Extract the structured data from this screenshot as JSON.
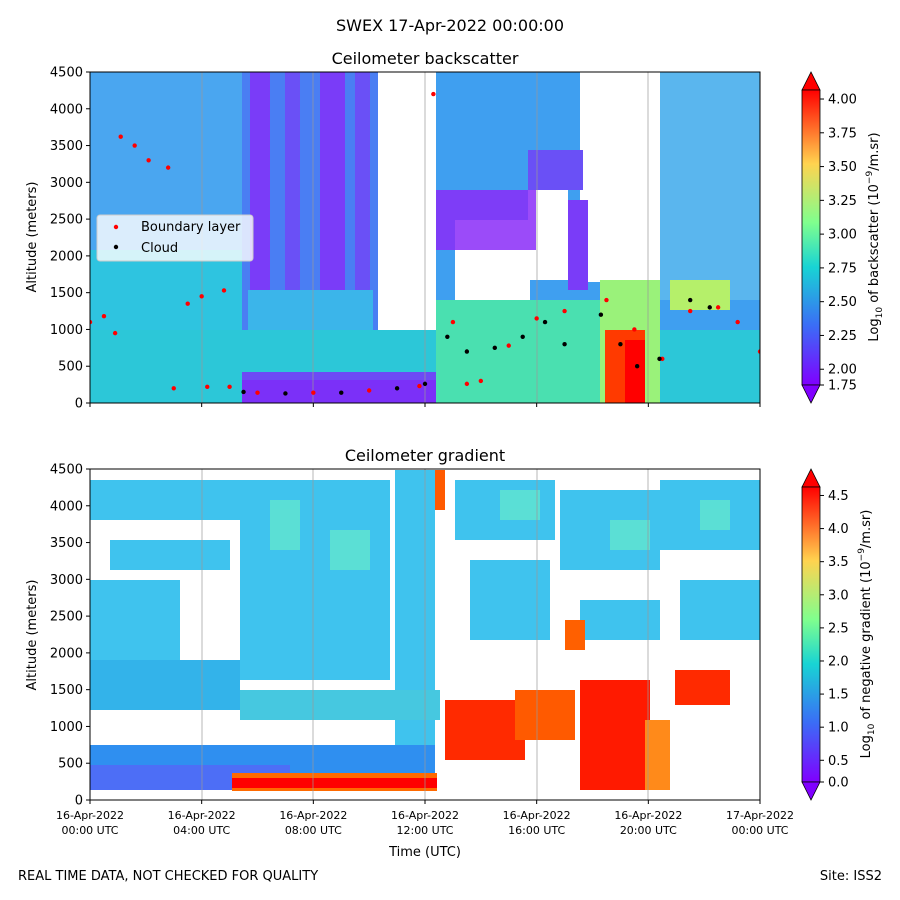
{
  "figure": {
    "suptitle": "SWEX 17-Apr-2022 00:00:00",
    "footer_left": "REAL TIME DATA, NOT CHECKED FOR QUALITY",
    "footer_right": "Site: ISS2"
  },
  "chart_data": [
    {
      "type": "heatmap",
      "title": "Ceilometer backscatter",
      "ylabel": "Altitude (meters)",
      "xlabel": "",
      "ylim": [
        0,
        4500
      ],
      "yticks": [
        0,
        500,
        1000,
        1500,
        2000,
        2500,
        3000,
        3500,
        4000,
        4500
      ],
      "xlim_hours": [
        0,
        24
      ],
      "colorbar": {
        "label": "Log10 of backscatter (10⁻⁹/m.sr)",
        "ticks": [
          1.75,
          2.0,
          2.25,
          2.5,
          2.75,
          3.0,
          3.25,
          3.5,
          3.75,
          4.0
        ],
        "range": [
          1.75,
          4.2
        ],
        "colormap": "rainbow"
      },
      "legend": {
        "placement": "center-left",
        "entries": [
          {
            "label": "Boundary layer",
            "color": "#ff0000"
          },
          {
            "label": "Cloud",
            "color": "#000000"
          }
        ]
      },
      "series": [
        {
          "name": "Boundary layer",
          "points": [
            [
              0.0,
              1100
            ],
            [
              0.5,
              1180
            ],
            [
              0.9,
              950
            ],
            [
              1.1,
              3620
            ],
            [
              1.6,
              3500
            ],
            [
              2.1,
              3300
            ],
            [
              2.8,
              3200
            ],
            [
              3.0,
              200
            ],
            [
              3.5,
              1350
            ],
            [
              4.0,
              1450
            ],
            [
              4.8,
              1530
            ],
            [
              4.2,
              220
            ],
            [
              5.0,
              220
            ],
            [
              6.0,
              140
            ],
            [
              8.0,
              140
            ],
            [
              10.0,
              170
            ],
            [
              11.8,
              230
            ],
            [
              12.3,
              4200
            ],
            [
              13.0,
              1100
            ],
            [
              13.5,
              260
            ],
            [
              14.0,
              300
            ],
            [
              15.0,
              780
            ],
            [
              16.0,
              1150
            ],
            [
              17.0,
              1250
            ],
            [
              18.5,
              1400
            ],
            [
              19.5,
              1000
            ],
            [
              20.5,
              600
            ],
            [
              21.5,
              1250
            ],
            [
              22.5,
              1300
            ],
            [
              23.2,
              1100
            ],
            [
              24.0,
              700
            ]
          ]
        },
        {
          "name": "Cloud",
          "points": [
            [
              5.5,
              150
            ],
            [
              7.0,
              130
            ],
            [
              9.0,
              140
            ],
            [
              11.0,
              200
            ],
            [
              12.0,
              260
            ],
            [
              12.8,
              900
            ],
            [
              13.5,
              700
            ],
            [
              14.5,
              750
            ],
            [
              15.5,
              900
            ],
            [
              16.3,
              1100
            ],
            [
              17.0,
              800
            ],
            [
              18.3,
              1200
            ],
            [
              19.0,
              800
            ],
            [
              19.6,
              500
            ],
            [
              20.4,
              600
            ],
            [
              21.5,
              1400
            ],
            [
              22.2,
              1300
            ]
          ]
        }
      ]
    },
    {
      "type": "heatmap",
      "title": "Ceilometer gradient",
      "ylabel": "Altitude (meters)",
      "xlabel": "Time (UTC)",
      "ylim": [
        0,
        4500
      ],
      "yticks": [
        0,
        500,
        1000,
        1500,
        2000,
        2500,
        3000,
        3500,
        4000,
        4500
      ],
      "xlim_hours": [
        0,
        24
      ],
      "xticks": [
        {
          "hour": 0,
          "line1": "16-Apr-2022",
          "line2": "00:00 UTC"
        },
        {
          "hour": 4,
          "line1": "16-Apr-2022",
          "line2": "04:00 UTC"
        },
        {
          "hour": 8,
          "line1": "16-Apr-2022",
          "line2": "08:00 UTC"
        },
        {
          "hour": 12,
          "line1": "16-Apr-2022",
          "line2": "12:00 UTC"
        },
        {
          "hour": 16,
          "line1": "16-Apr-2022",
          "line2": "16:00 UTC"
        },
        {
          "hour": 20,
          "line1": "16-Apr-2022",
          "line2": "20:00 UTC"
        },
        {
          "hour": 24,
          "line1": "17-Apr-2022",
          "line2": "00:00 UTC"
        }
      ],
      "colorbar": {
        "label": "Log10 of negative gradient (10⁻⁹/m.sr)",
        "ticks": [
          0.0,
          0.5,
          1.0,
          1.5,
          2.0,
          2.5,
          3.0,
          3.5,
          4.0,
          4.5
        ],
        "range": [
          -0.1,
          4.9
        ],
        "colormap": "rainbow"
      }
    }
  ]
}
